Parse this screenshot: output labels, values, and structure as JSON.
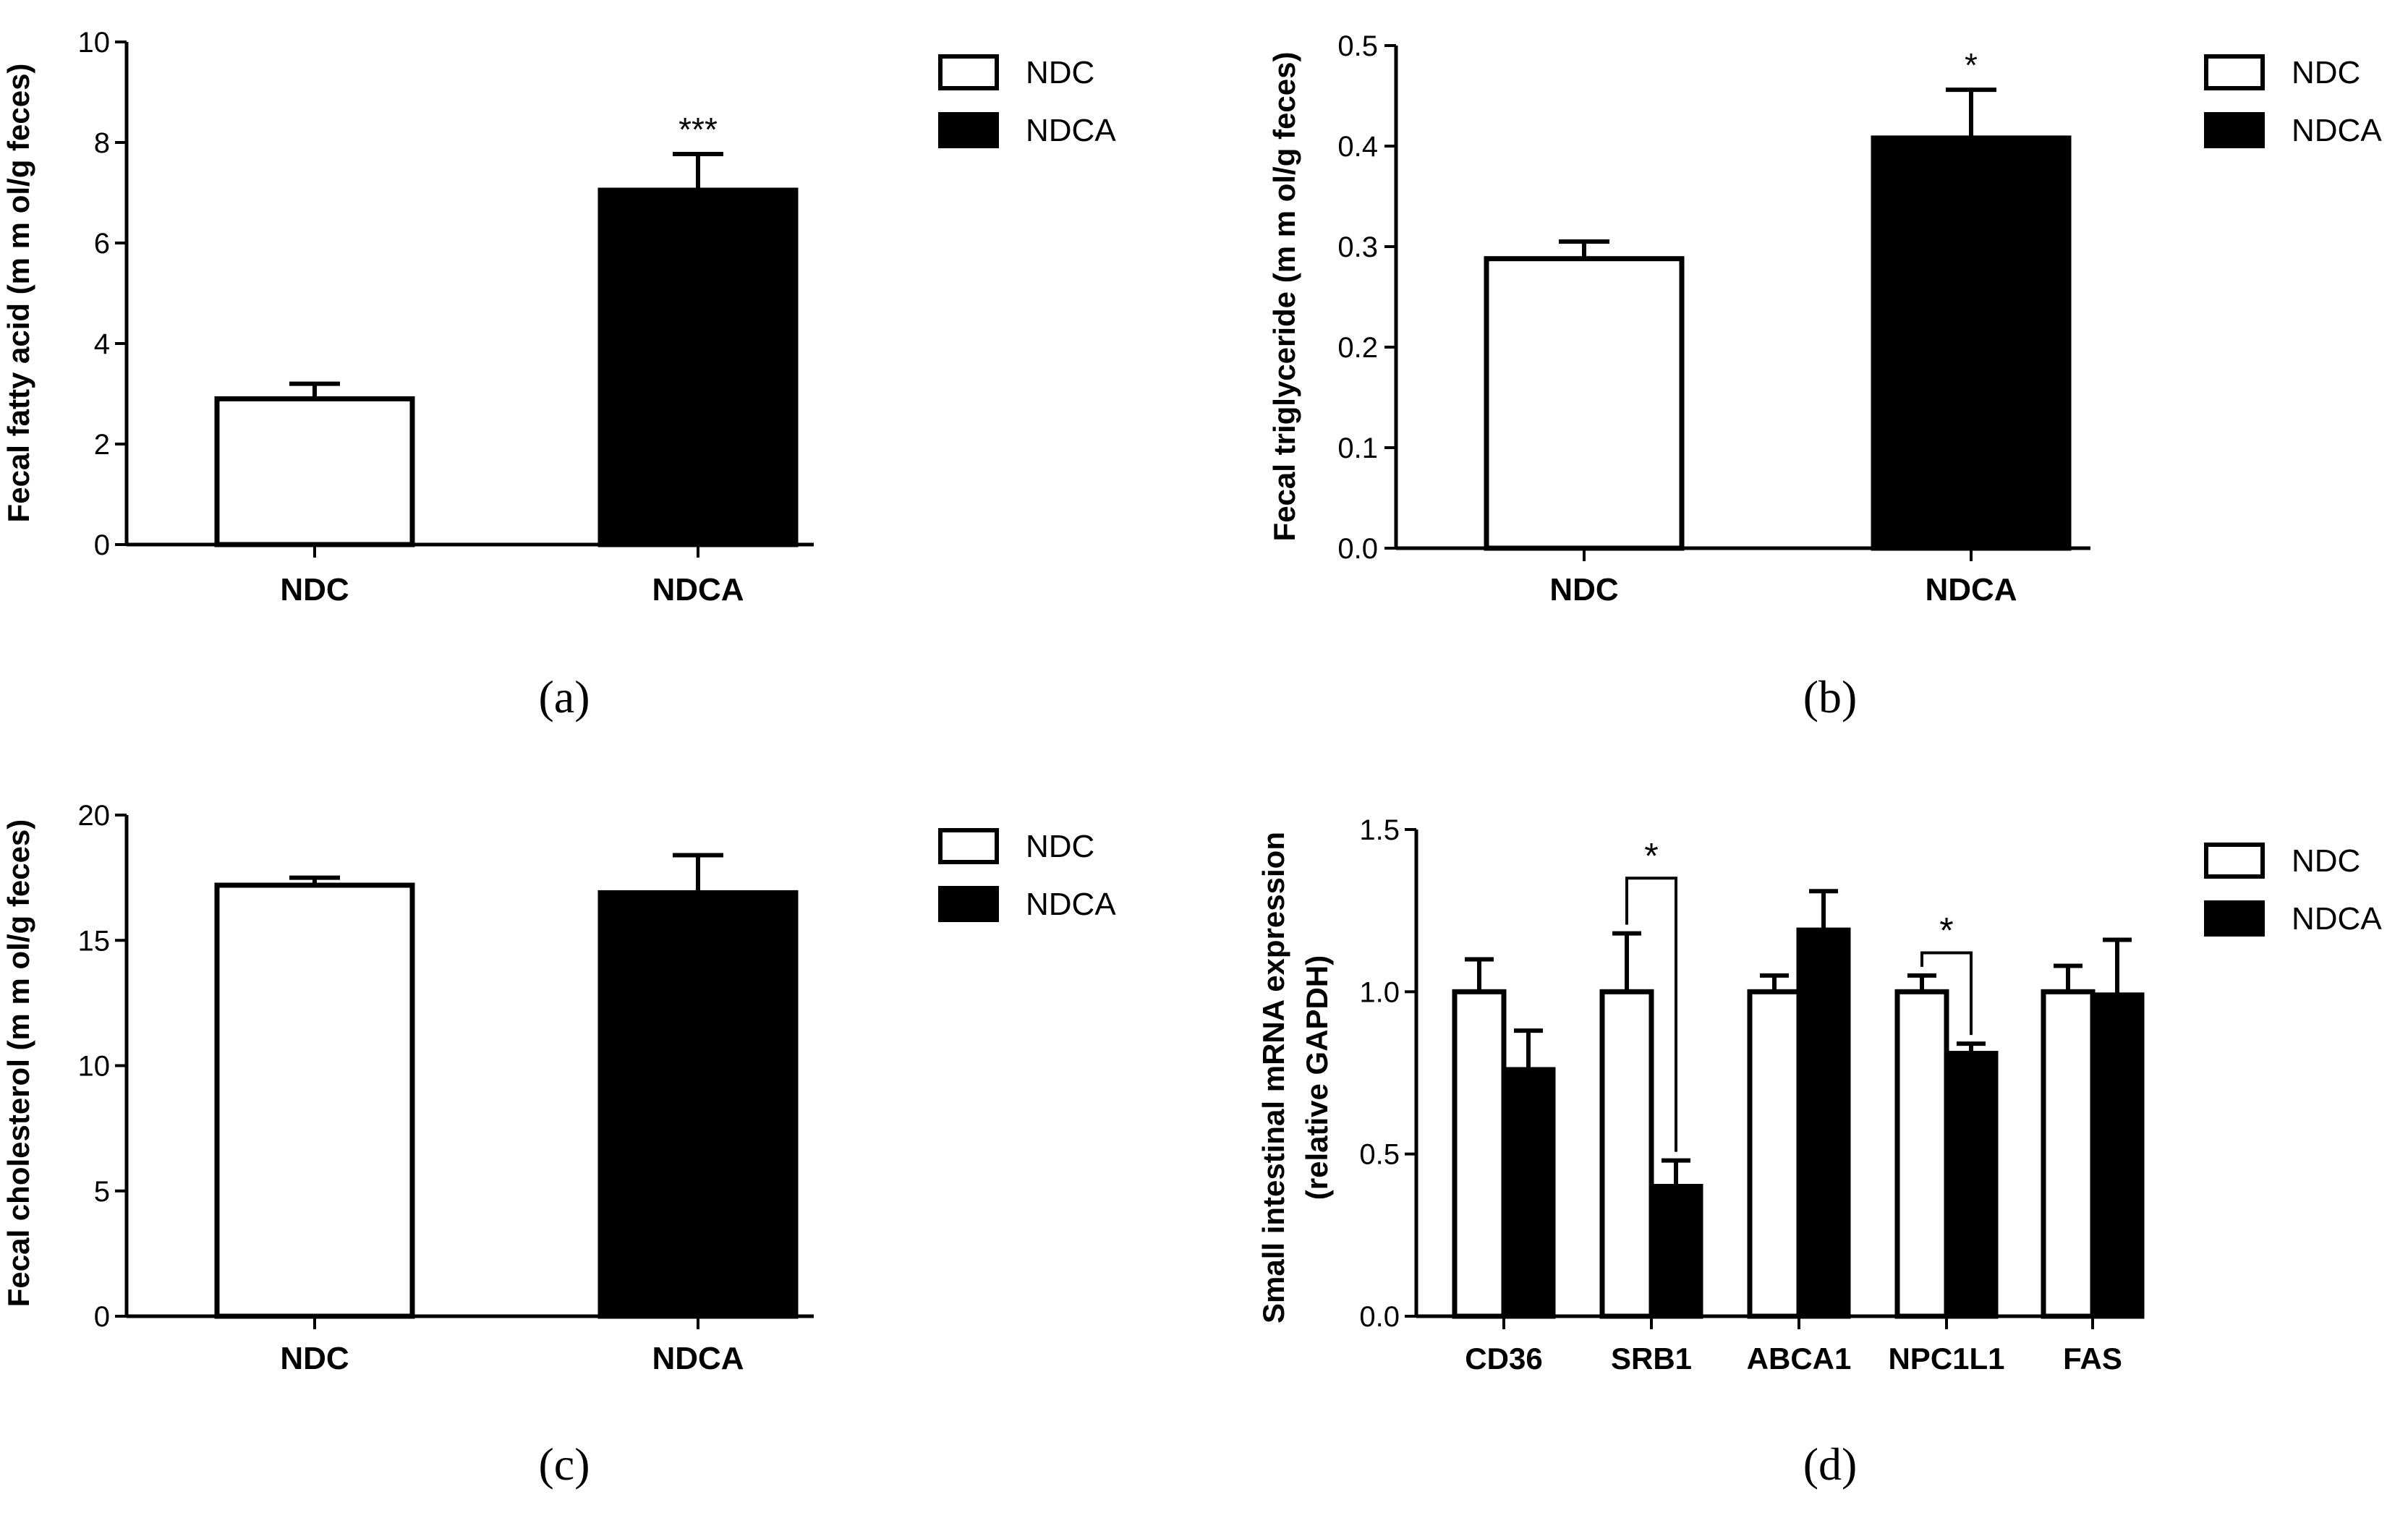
{
  "colors": {
    "ink": "#000000",
    "paper": "#ffffff"
  },
  "legend": {
    "items": [
      "NDC",
      "NDCA"
    ]
  },
  "chart_data": [
    {
      "panel": "a",
      "panel_label": "(a)",
      "type": "bar",
      "categories": [
        "NDC",
        "NDCA"
      ],
      "values": [
        2.9,
        7.05
      ],
      "errors": [
        0.3,
        0.72
      ],
      "bar_fill": [
        "#ffffff",
        "#000000"
      ],
      "ylabel": "Fecal fatty acid (m m ol/g feces)",
      "ylim": [
        0,
        10
      ],
      "yticks": [
        0,
        2,
        4,
        6,
        8,
        10
      ],
      "ytick_labels": [
        "0",
        "2",
        "4",
        "6",
        "8",
        "10"
      ],
      "significance": [
        {
          "category": "NDCA",
          "label": "***"
        }
      ],
      "legend": [
        "NDC",
        "NDCA"
      ],
      "legend_position": "top-right"
    },
    {
      "panel": "b",
      "panel_label": "(b)",
      "type": "bar",
      "categories": [
        "NDC",
        "NDCA"
      ],
      "values": [
        0.288,
        0.408
      ],
      "errors": [
        0.017,
        0.048
      ],
      "bar_fill": [
        "#ffffff",
        "#000000"
      ],
      "ylabel": "Fecal triglyceride (m m ol/g feces)",
      "ylim": [
        0,
        0.5
      ],
      "yticks": [
        0,
        0.1,
        0.2,
        0.3,
        0.4,
        0.5
      ],
      "ytick_labels": [
        "0.0",
        "0.1",
        "0.2",
        "0.3",
        "0.4",
        "0.5"
      ],
      "significance": [
        {
          "category": "NDCA",
          "label": "*"
        }
      ],
      "legend": [
        "NDC",
        "NDCA"
      ],
      "legend_position": "top-right"
    },
    {
      "panel": "c",
      "panel_label": "(c)",
      "type": "bar",
      "categories": [
        "NDC",
        "NDCA"
      ],
      "values": [
        17.2,
        16.9
      ],
      "errors": [
        0.3,
        1.5
      ],
      "bar_fill": [
        "#ffffff",
        "#000000"
      ],
      "ylabel": "Fecal cholesterol (m m ol/g feces)",
      "ylim": [
        0,
        20
      ],
      "yticks": [
        0,
        5,
        10,
        15,
        20
      ],
      "ytick_labels": [
        "0",
        "5",
        "10",
        "15",
        "20"
      ],
      "significance": [],
      "legend": [
        "NDC",
        "NDCA"
      ],
      "legend_position": "top-right"
    },
    {
      "panel": "d",
      "panel_label": "(d)",
      "type": "bar",
      "categories": [
        "CD36",
        "SRB1",
        "ABCA1",
        "NPC1L1",
        "FAS"
      ],
      "series": [
        {
          "name": "NDC",
          "values": [
            1.0,
            1.0,
            1.0,
            1.0,
            1.0
          ],
          "errors": [
            0.1,
            0.18,
            0.05,
            0.05,
            0.08
          ],
          "fill": "#ffffff"
        },
        {
          "name": "NDCA",
          "values": [
            0.76,
            0.4,
            1.19,
            0.81,
            0.99
          ],
          "errors": [
            0.12,
            0.08,
            0.12,
            0.03,
            0.17
          ],
          "fill": "#000000"
        }
      ],
      "ylabel_lines": [
        "Small intestinal mRNA expression",
        "(relative GAPDH)"
      ],
      "ylim": [
        0,
        1.5
      ],
      "yticks": [
        0,
        0.5,
        1.0,
        1.5
      ],
      "ytick_labels": [
        "0.0",
        "0.5",
        "1.0",
        "1.5"
      ],
      "significance": [
        {
          "category": "SRB1",
          "label": "*",
          "bracket_y": 1.35
        },
        {
          "category": "NPC1L1",
          "label": "*",
          "bracket_y": 1.12
        }
      ],
      "legend": [
        "NDC",
        "NDCA"
      ],
      "legend_position": "top-right"
    }
  ]
}
